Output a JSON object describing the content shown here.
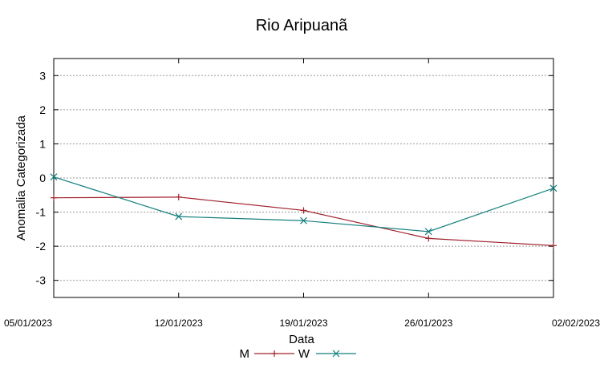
{
  "chart_data": {
    "type": "line",
    "title": "Rio Aripuanã",
    "xlabel": "Data",
    "ylabel": "Anomalia Categorizada",
    "categories": [
      "05/01/2023",
      "12/01/2023",
      "19/01/2023",
      "26/01/2023",
      "02/02/2023"
    ],
    "ylim": [
      -3.5,
      3.5
    ],
    "yticks": [
      3,
      2,
      1,
      0,
      -1,
      -2,
      -3
    ],
    "ytick_labels": [
      "3",
      "2",
      "1",
      "0",
      "-1",
      "-2",
      "-3"
    ],
    "grid": true,
    "legend_position": "bottom-center",
    "series": [
      {
        "name": "M",
        "color": "#a0202a",
        "marker": "plus",
        "values": [
          -0.58,
          -0.56,
          -0.95,
          -1.77,
          -1.98
        ]
      },
      {
        "name": "W",
        "color": "#157f7f",
        "marker": "cross",
        "values": [
          0.03,
          -1.13,
          -1.25,
          -1.57,
          -0.3
        ]
      }
    ]
  }
}
